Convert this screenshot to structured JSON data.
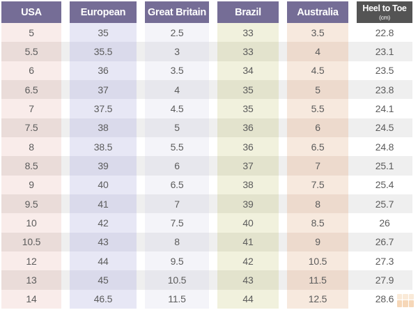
{
  "chart_data": {
    "type": "table",
    "columns": [
      {
        "label": "USA",
        "header_bg": "#756d96",
        "tint": "#f9ecea",
        "tint_alt": "#eadcd9"
      },
      {
        "label": "European",
        "header_bg": "#756d96",
        "tint": "#e7e7f5",
        "tint_alt": "#dadaeb"
      },
      {
        "label": "Great Britain",
        "header_bg": "#756d96",
        "tint": "#f4f4f9",
        "tint_alt": "#e7e7ed"
      },
      {
        "label": "Brazil",
        "header_bg": "#756d96",
        "tint": "#f1f1dd",
        "tint_alt": "#e3e3cd"
      },
      {
        "label": "Australia",
        "header_bg": "#756d96",
        "tint": "#f7e9de",
        "tint_alt": "#eddacd"
      },
      {
        "label": "Heel to Toe",
        "sublabel": "(cm)",
        "header_bg": "#545454",
        "tint": "#ffffff",
        "tint_alt": "#efefef"
      }
    ],
    "rows": [
      [
        "5",
        "35",
        "2.5",
        "33",
        "3.5",
        "22.8"
      ],
      [
        "5.5",
        "35.5",
        "3",
        "33",
        "4",
        "23.1"
      ],
      [
        "6",
        "36",
        "3.5",
        "34",
        "4.5",
        "23.5"
      ],
      [
        "6.5",
        "37",
        "4",
        "35",
        "5",
        "23.8"
      ],
      [
        "7",
        "37.5",
        "4.5",
        "35",
        "5.5",
        "24.1"
      ],
      [
        "7.5",
        "38",
        "5",
        "36",
        "6",
        "24.5"
      ],
      [
        "8",
        "38.5",
        "5.5",
        "36",
        "6.5",
        "24.8"
      ],
      [
        "8.5",
        "39",
        "6",
        "37",
        "7",
        "25.1"
      ],
      [
        "9",
        "40",
        "6.5",
        "38",
        "7.5",
        "25.4"
      ],
      [
        "9.5",
        "41",
        "7",
        "39",
        "8",
        "25.7"
      ],
      [
        "10",
        "42",
        "7.5",
        "40",
        "8.5",
        "26"
      ],
      [
        "10.5",
        "43",
        "8",
        "41",
        "9",
        "26.7"
      ],
      [
        "12",
        "44",
        "9.5",
        "42",
        "10.5",
        "27.3"
      ],
      [
        "13",
        "45",
        "10.5",
        "43",
        "11.5",
        "27.9"
      ],
      [
        "14",
        "46.5",
        "11.5",
        "44",
        "12.5",
        "28.6"
      ]
    ],
    "layout": {
      "grid": "off",
      "legend": "none",
      "striped_rows": true
    }
  },
  "colors": {
    "header_purple": "#756d96",
    "header_gray": "#545454",
    "header_text": "#ffffff",
    "cell_text": "#5b5b5b",
    "row_base": "#ffffff",
    "row_stripe": "#efefef",
    "watermark_orange": "#eda763",
    "watermark_orange_light": "#f6d2ab"
  }
}
